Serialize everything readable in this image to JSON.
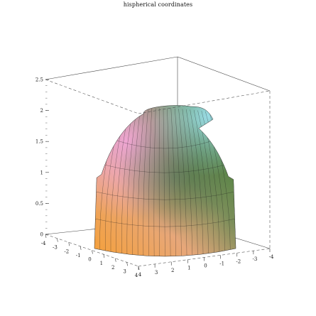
{
  "chart_data": {
    "type": "surface3d",
    "title": "hispherical coordinates",
    "xlabel": "",
    "ylabel": "",
    "zlabel": "",
    "x_ticks": [
      "-4",
      "-3",
      "-2",
      "-1",
      "0",
      "1",
      "2",
      "3",
      "4"
    ],
    "y_ticks": [
      "4",
      "3",
      "2",
      "1",
      "0",
      "-1",
      "-2",
      "-3",
      "-4"
    ],
    "z_ticks": [
      "0",
      "0.5",
      "1",
      "1.5",
      "2",
      "2.5"
    ],
    "z_range": [
      0,
      2.5
    ],
    "xy_range": [
      -4,
      4
    ],
    "box": true,
    "grid": false,
    "legend": "none",
    "surface": {
      "shape": "dome with a notch at the top",
      "top_height": 2.1,
      "base_radius": 3.6,
      "colors": [
        "#f2a03c",
        "#f0a6c8",
        "#2f7a2e",
        "#8fd6e4"
      ]
    }
  }
}
